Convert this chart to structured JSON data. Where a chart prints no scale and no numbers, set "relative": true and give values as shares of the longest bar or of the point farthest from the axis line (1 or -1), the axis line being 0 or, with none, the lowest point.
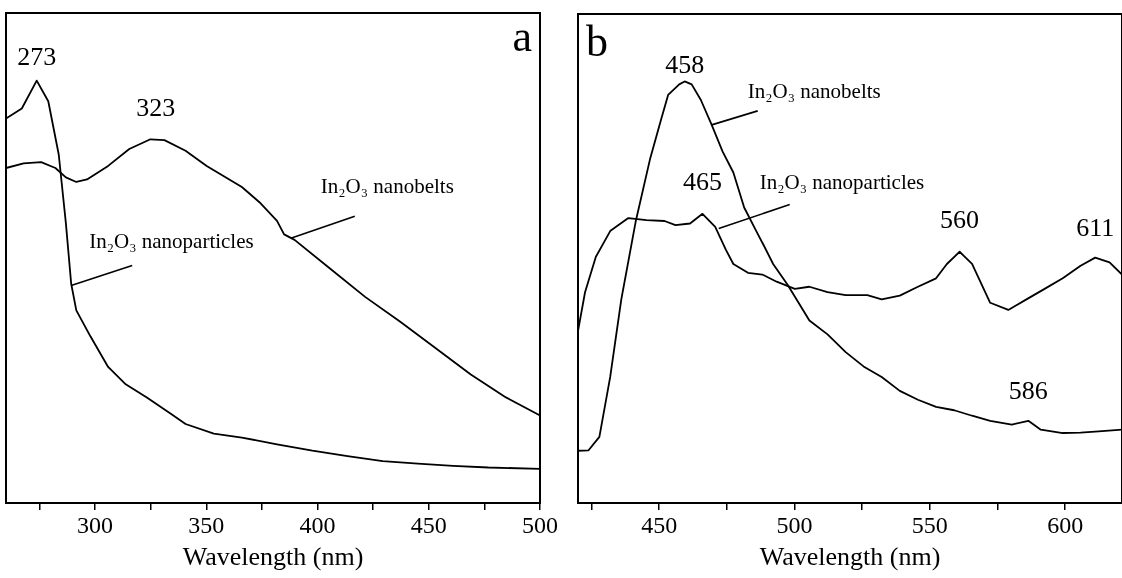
{
  "chart_data": [
    {
      "type": "line",
      "relative": true,
      "xlabel": "Wavelength (nm)",
      "xlim": [
        260,
        500
      ],
      "tick_labels": "x",
      "grid": false,
      "legend": false,
      "xticks": [
        {
          "value": 275,
          "label": null
        },
        300,
        {
          "value": 325,
          "label": null
        },
        350,
        {
          "value": 375,
          "label": null
        },
        400,
        {
          "value": 425,
          "label": null
        },
        450,
        {
          "value": 475,
          "label": null
        },
        500
      ],
      "series": [
        {
          "color": "#000000",
          "x": [
            260,
            267.1,
            273.8,
            279,
            283.7,
            286.9,
            289.3,
            291.6,
            298,
            305.9,
            313.8,
            323.3,
            334.4,
            340.7,
            353.4,
            366,
            381.8,
            397.7,
            413.5,
            429.3,
            445.1,
            460.9,
            476.8,
            500
          ],
          "values": [
            0.91,
            0.934,
            1,
            0.951,
            0.825,
            0.663,
            0.519,
            0.456,
            0.394,
            0.322,
            0.281,
            0.25,
            0.21,
            0.187,
            0.164,
            0.155,
            0.139,
            0.124,
            0.111,
            0.099,
            0.093,
            0.088,
            0.084,
            0.081
          ]
        },
        {
          "color": "#000000",
          "x": [
            260,
            267.9,
            275.8,
            282.2,
            286.9,
            291.6,
            296.4,
            305.9,
            315.4,
            324.9,
            331.2,
            340.7,
            350.2,
            366,
            373.9,
            381.8,
            385,
            389.7,
            405.6,
            421.4,
            437.2,
            453,
            468.9,
            484.7,
            500
          ],
          "values": [
            0.793,
            0.804,
            0.807,
            0.793,
            0.771,
            0.76,
            0.766,
            0.798,
            0.838,
            0.861,
            0.859,
            0.834,
            0.798,
            0.748,
            0.712,
            0.668,
            0.636,
            0.623,
            0.555,
            0.488,
            0.429,
            0.367,
            0.304,
            0.25,
            0.207
          ]
        }
      ],
      "annotations": [
        {
          "text": "273",
          "x": 273.8,
          "y": 1
        },
        {
          "text": "323",
          "x": 327.3,
          "y": 0.863
        },
        {
          "text": "In₂O₃ nanobelts",
          "x": 388,
          "y": 0.627
        },
        {
          "text": "In₂O₃ nanoparticles",
          "x": 289.3,
          "y": 0.515
        },
        "a"
      ]
    },
    {
      "type": "line",
      "relative": true,
      "xlabel": "Wavelength (nm)",
      "xlim": [
        420,
        621
      ],
      "tick_labels": "x",
      "grid": false,
      "legend": false,
      "xticks": [
        {
          "value": 425,
          "label": null
        },
        450,
        {
          "value": 475,
          "label": null
        },
        500,
        {
          "value": 525,
          "label": null
        },
        550,
        {
          "value": 575,
          "label": null
        },
        600
      ],
      "series": [
        {
          "color": "#000000",
          "x": [
            420,
            423.9,
            427.9,
            431.9,
            436,
            441.3,
            446.7,
            450.7,
            453.3,
            457.4,
            459.4,
            462,
            465.4,
            469.4,
            473.4,
            477.4,
            481.4,
            485.4,
            488.8,
            492.1,
            497.5,
            501.5,
            505.5,
            512.2,
            518.9,
            525.5,
            532.2,
            538.9,
            545.6,
            552.3,
            559,
            565.6,
            572.3,
            580.3,
            586.4,
            591,
            599.1,
            605.7,
            612.4,
            621
          ],
          "values": [
            0.124,
            0.125,
            0.157,
            0.299,
            0.483,
            0.667,
            0.818,
            0.91,
            0.968,
            0.993,
            1,
            0.993,
            0.956,
            0.897,
            0.834,
            0.784,
            0.701,
            0.651,
            0.609,
            0.567,
            0.517,
            0.475,
            0.433,
            0.4,
            0.358,
            0.324,
            0.299,
            0.266,
            0.245,
            0.228,
            0.22,
            0.207,
            0.195,
            0.186,
            0.195,
            0.174,
            0.166,
            0.167,
            0.17,
            0.174
          ]
        },
        {
          "color": "#000000",
          "x": [
            420,
            422.6,
            426.6,
            432,
            438.6,
            445.3,
            452,
            456,
            461.4,
            466,
            470.7,
            474.7,
            477.4,
            482.8,
            488.1,
            493.4,
            500.1,
            505.5,
            512.2,
            518.9,
            526.9,
            532.2,
            538.9,
            545.6,
            552.3,
            556.3,
            561,
            565.6,
            572.3,
            579,
            585.7,
            592.4,
            599.1,
            605.7,
            611.1,
            616.4,
            621
          ],
          "values": [
            0.408,
            0.5,
            0.584,
            0.646,
            0.676,
            0.671,
            0.669,
            0.659,
            0.663,
            0.686,
            0.655,
            0.6,
            0.567,
            0.546,
            0.542,
            0.525,
            0.508,
            0.513,
            0.5,
            0.493,
            0.493,
            0.483,
            0.492,
            0.513,
            0.533,
            0.567,
            0.596,
            0.567,
            0.475,
            0.458,
            0.483,
            0.508,
            0.533,
            0.563,
            0.582,
            0.571,
            0.542
          ]
        }
      ],
      "annotations": [
        {
          "text": "458",
          "x": 459.4,
          "y": 1
        },
        {
          "text": "465",
          "x": 466,
          "y": 0.686
        },
        {
          "text": "560",
          "x": 561,
          "y": 0.596
        },
        {
          "text": "611",
          "x": 611.1,
          "y": 0.582
        },
        {
          "text": "586",
          "x": 586.4,
          "y": 0.195
        },
        {
          "text": "In₂O₃ nanobelts",
          "x": 469.4,
          "y": 0.897
        },
        {
          "text": "In₂O₃ nanoparticles",
          "x": 472,
          "y": 0.651
        },
        "b"
      ]
    }
  ]
}
